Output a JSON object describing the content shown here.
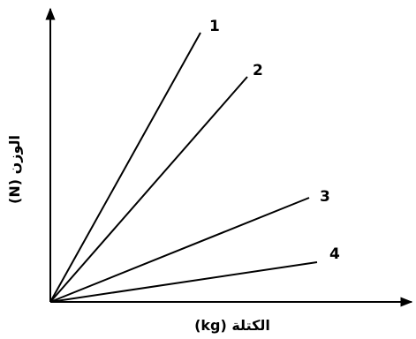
{
  "chart_data": {
    "type": "line",
    "title": "",
    "xlabel": "الكتلة (kg)",
    "ylabel": "الوزن (N)",
    "axis_color": "#000000",
    "line_color": "#000000",
    "grid": false,
    "ticks": false,
    "series": [
      {
        "name": "1",
        "x": [
          0,
          170
        ],
        "y": [
          0,
          305
        ]
      },
      {
        "name": "2",
        "x": [
          0,
          223
        ],
        "y": [
          0,
          255
        ]
      },
      {
        "name": "3",
        "x": [
          0,
          293
        ],
        "y": [
          0,
          118
        ]
      },
      {
        "name": "4",
        "x": [
          0,
          302
        ],
        "y": [
          0,
          45
        ]
      }
    ]
  }
}
